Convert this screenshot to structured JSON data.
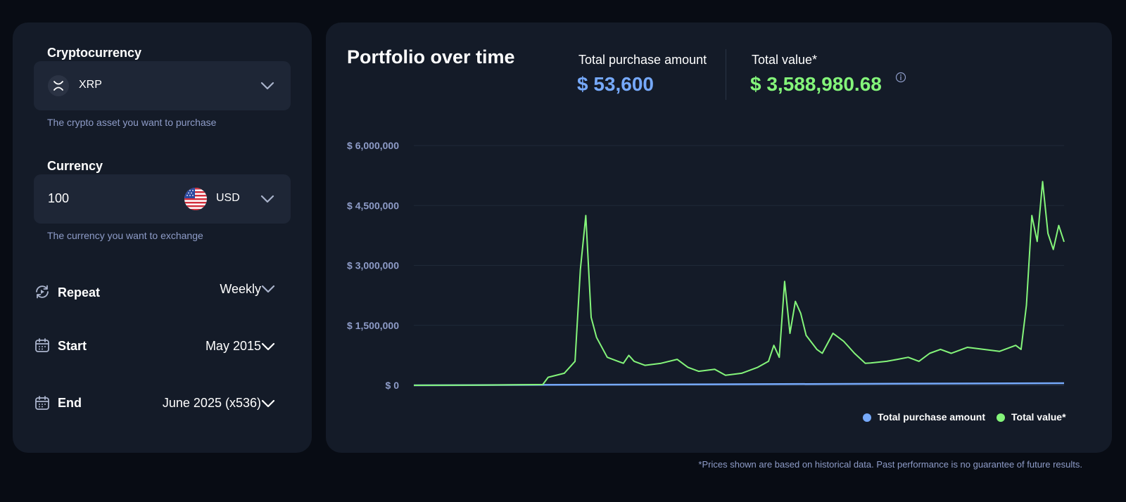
{
  "left_panel": {
    "crypto": {
      "label": "Cryptocurrency",
      "selected": "XRP",
      "icon": "xrp-icon",
      "helper": "The crypto asset you want to purchase"
    },
    "currency": {
      "label": "Currency",
      "amount": "100",
      "code": "USD",
      "icon": "us-flag-icon",
      "helper": "The currency you want to exchange"
    },
    "repeat": {
      "label": "Repeat",
      "value": "Weekly",
      "icon": "repeat-icon"
    },
    "start": {
      "label": "Start",
      "value": "May 2015",
      "icon": "calendar-icon"
    },
    "end": {
      "label": "End",
      "value": "June 2025 (x536)",
      "icon": "calendar-icon"
    }
  },
  "right_panel": {
    "title": "Portfolio over time",
    "stats": {
      "purchase_label": "Total purchase amount",
      "purchase_value": "$ 53,600",
      "total_label": "Total value*",
      "total_value": "$ 3,588,980.68",
      "info_icon": "info-icon"
    }
  },
  "colors": {
    "purchase": "#76a9fa",
    "value": "#84f57a",
    "background": "#080c14",
    "panel": "#141b28"
  },
  "chart_data": {
    "type": "line",
    "title": "",
    "xlabel": "",
    "ylabel": "",
    "ylim": [
      0,
      6000000
    ],
    "y_ticks": [
      "$ 6,000,000",
      "$ 4,500,000",
      "$ 3,000,000",
      "$ 1,500,000",
      "$ 0"
    ],
    "y_tick_values": [
      6000000,
      4500000,
      3000000,
      1500000,
      0
    ],
    "x_range": [
      "2015-05",
      "2025-06"
    ],
    "legend": [
      "Total purchase amount",
      "Total value*"
    ],
    "legend_position": "bottom-right",
    "grid": true,
    "series": [
      {
        "name": "Total purchase amount",
        "color": "#76a9fa",
        "x": [
          "2015-05",
          "2020-05",
          "2025-06"
        ],
        "y": [
          0,
          26000,
          53600
        ]
      },
      {
        "name": "Total value*",
        "color": "#84f57a",
        "x": [
          "2015-05",
          "2016-05",
          "2017-05",
          "2017-06",
          "2017-09",
          "2017-11",
          "2017-12",
          "2018-01",
          "2018-02",
          "2018-03",
          "2018-05",
          "2018-07",
          "2018-08",
          "2018-09",
          "2018-10",
          "2018-12",
          "2019-03",
          "2019-06",
          "2019-08",
          "2019-10",
          "2020-01",
          "2020-03",
          "2020-06",
          "2020-09",
          "2020-11",
          "2020-12",
          "2021-01",
          "2021-02",
          "2021-03",
          "2021-04",
          "2021-05",
          "2021-06",
          "2021-08",
          "2021-09",
          "2021-11",
          "2022-01",
          "2022-03",
          "2022-05",
          "2022-06",
          "2022-09",
          "2022-11",
          "2023-01",
          "2023-03",
          "2023-05",
          "2023-07",
          "2023-09",
          "2023-12",
          "2024-03",
          "2024-06",
          "2024-09",
          "2024-10",
          "2024-11",
          "2024-12",
          "2025-01",
          "2025-02",
          "2025-03",
          "2025-04",
          "2025-05",
          "2025-06"
        ],
        "y": [
          0,
          5000,
          20000,
          200000,
          300000,
          600000,
          2900000,
          4250000,
          1700000,
          1200000,
          700000,
          600000,
          550000,
          750000,
          600000,
          500000,
          550000,
          650000,
          450000,
          350000,
          400000,
          250000,
          300000,
          450000,
          600000,
          1000000,
          700000,
          2600000,
          1300000,
          2100000,
          1800000,
          1250000,
          900000,
          800000,
          1300000,
          1100000,
          800000,
          550000,
          560000,
          600000,
          650000,
          700000,
          600000,
          800000,
          900000,
          800000,
          950000,
          900000,
          850000,
          1000000,
          900000,
          2000000,
          4250000,
          3600000,
          5100000,
          3800000,
          3400000,
          4000000,
          3588980
        ]
      }
    ]
  },
  "disclaimer": "*Prices shown are based on historical data. Past performance is no guarantee of future results."
}
